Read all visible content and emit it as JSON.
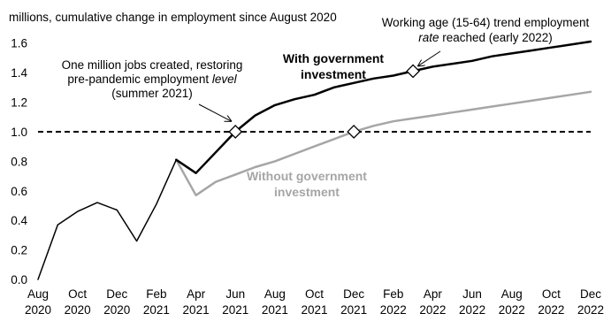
{
  "chart_data": {
    "type": "line",
    "title": "",
    "ylabel": "millions, cumulative change in employment since August 2020",
    "xlabel": "",
    "ylim": [
      0,
      1.7
    ],
    "yticks": [
      0.0,
      0.2,
      0.4,
      0.6,
      0.8,
      1.0,
      1.2,
      1.4,
      1.6
    ],
    "ytick_labels": [
      "0.0",
      "0.2",
      "0.4",
      "0.6",
      "0.8",
      "1.0",
      "1.2",
      "1.4",
      "1.6"
    ],
    "xlim": [
      "2020-08",
      "2022-12"
    ],
    "xticks": [
      {
        "date": "2020-08",
        "line1": "Aug",
        "line2": "2020"
      },
      {
        "date": "2020-10",
        "line1": "Oct",
        "line2": "2020"
      },
      {
        "date": "2020-12",
        "line1": "Dec",
        "line2": "2020"
      },
      {
        "date": "2021-02",
        "line1": "Feb",
        "line2": "2021"
      },
      {
        "date": "2021-04",
        "line1": "Apr",
        "line2": "2021"
      },
      {
        "date": "2021-06",
        "line1": "Jun",
        "line2": "2021"
      },
      {
        "date": "2021-08",
        "line1": "Aug",
        "line2": "2021"
      },
      {
        "date": "2021-10",
        "line1": "Oct",
        "line2": "2021"
      },
      {
        "date": "2021-12",
        "line1": "Dec",
        "line2": "2021"
      },
      {
        "date": "2022-02",
        "line1": "Feb",
        "line2": "2022"
      },
      {
        "date": "2022-04",
        "line1": "Apr",
        "line2": "2022"
      },
      {
        "date": "2022-06",
        "line1": "Jun",
        "line2": "2022"
      },
      {
        "date": "2022-08",
        "line1": "Aug",
        "line2": "2022"
      },
      {
        "date": "2022-10",
        "line1": "Oct",
        "line2": "2022"
      },
      {
        "date": "2022-12",
        "line1": "Dec",
        "line2": "2022"
      }
    ],
    "reference_line": {
      "y": 1.0,
      "style": "dashed",
      "color": "#000000"
    },
    "series": [
      {
        "name": "",
        "color": "#000000",
        "width": 1.5,
        "x": [
          "2020-08",
          "2020-09",
          "2020-10",
          "2020-11",
          "2020-12",
          "2021-01",
          "2021-02",
          "2021-03"
        ],
        "y": [
          0.0,
          0.37,
          0.46,
          0.52,
          0.47,
          0.26,
          0.51,
          0.81
        ]
      },
      {
        "name": "With government investment",
        "color": "#000000",
        "width": 2.5,
        "x": [
          "2021-03",
          "2021-04",
          "2021-05",
          "2021-06",
          "2021-07",
          "2021-08",
          "2021-09",
          "2021-10",
          "2021-11",
          "2021-12",
          "2022-01",
          "2022-02",
          "2022-03",
          "2022-04",
          "2022-05",
          "2022-06",
          "2022-07",
          "2022-08",
          "2022-09",
          "2022-10",
          "2022-11",
          "2022-12"
        ],
        "y": [
          0.81,
          0.72,
          0.86,
          1.0,
          1.11,
          1.18,
          1.22,
          1.25,
          1.3,
          1.33,
          1.36,
          1.38,
          1.41,
          1.44,
          1.46,
          1.48,
          1.51,
          1.53,
          1.55,
          1.57,
          1.59,
          1.61
        ]
      },
      {
        "name": "Without government investment",
        "color": "#a6a6a6",
        "width": 2.5,
        "x": [
          "2021-03",
          "2021-04",
          "2021-05",
          "2021-06",
          "2021-07",
          "2021-08",
          "2021-09",
          "2021-10",
          "2021-11",
          "2021-12",
          "2022-01",
          "2022-02",
          "2022-03",
          "2022-04",
          "2022-05",
          "2022-06",
          "2022-07",
          "2022-08",
          "2022-09",
          "2022-10",
          "2022-11",
          "2022-12"
        ],
        "y": [
          0.81,
          0.57,
          0.66,
          0.71,
          0.76,
          0.8,
          0.85,
          0.9,
          0.95,
          1.0,
          1.04,
          1.07,
          1.09,
          1.11,
          1.13,
          1.15,
          1.17,
          1.19,
          1.21,
          1.23,
          1.25,
          1.27
        ]
      }
    ],
    "markers": [
      {
        "x": "2021-06",
        "y": 1.0,
        "shape": "diamond"
      },
      {
        "x": "2021-12",
        "y": 1.0,
        "shape": "diamond"
      },
      {
        "x": "2022-03",
        "y": 1.41,
        "shape": "diamond"
      }
    ],
    "annotations": [
      {
        "lines": [
          "One million jobs created, restoring",
          "pre-pandemic employment |level|",
          "(summer 2021)"
        ]
      },
      {
        "lines": [
          "Working age (15-64) trend employment",
          "|rate| reached (early 2022)"
        ]
      },
      {
        "lines": [
          "With government",
          "investment"
        ],
        "bold": true,
        "color": "#000000"
      },
      {
        "lines": [
          "Without government",
          "investment"
        ],
        "bold": true,
        "color": "#a6a6a6"
      }
    ]
  }
}
